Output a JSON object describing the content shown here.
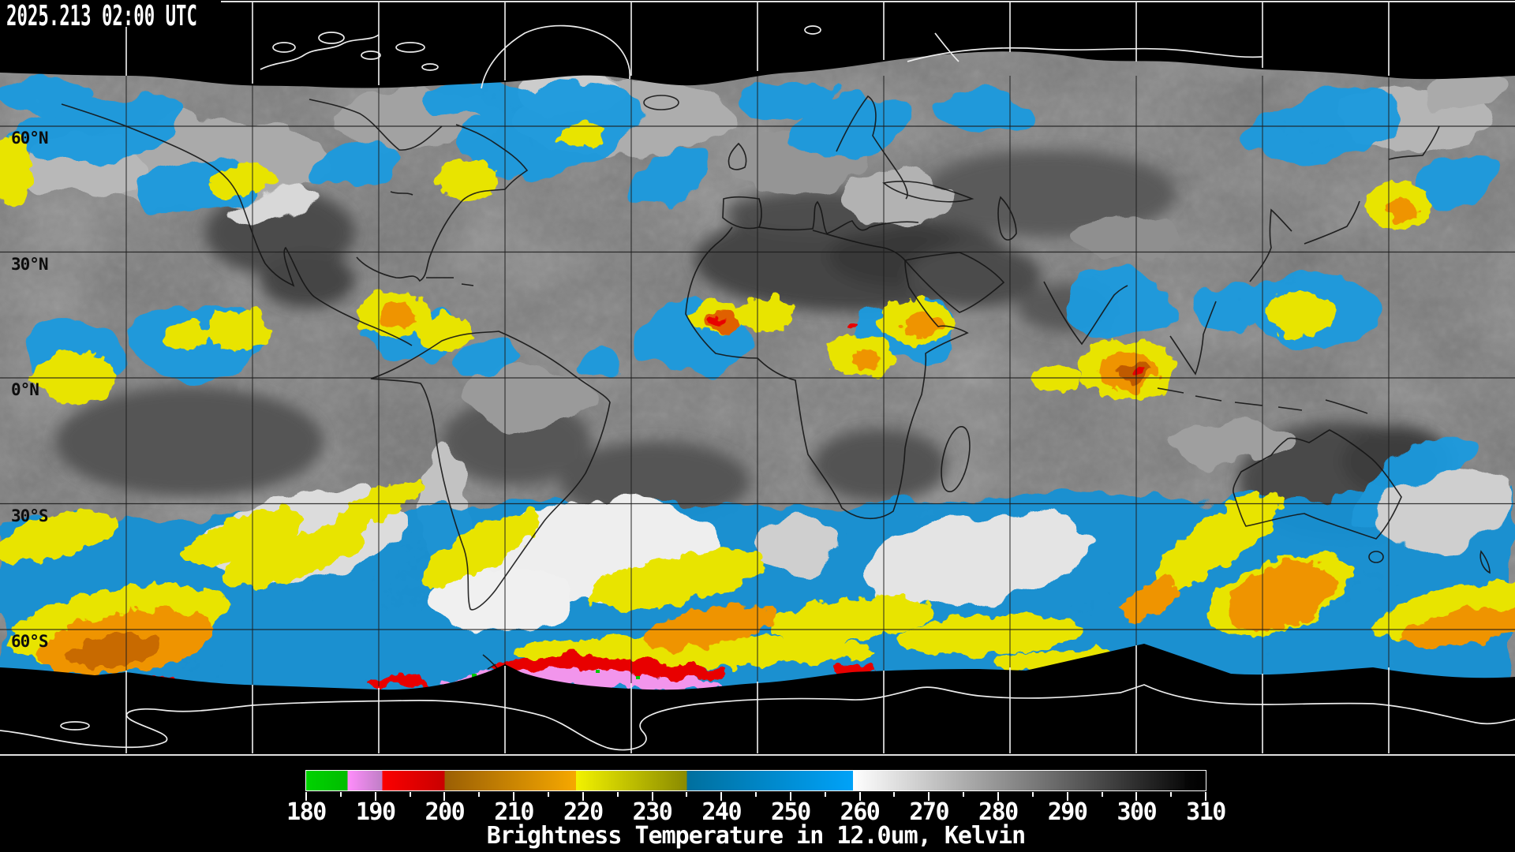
{
  "header": {
    "timestamp": "2025.213 02:00 UTC"
  },
  "map": {
    "latitude_labels": [
      "60°N",
      "30°N",
      "0°N",
      "30°S",
      "60°S"
    ]
  },
  "colorbar": {
    "title": "Brightness Temperature in 12.0um, Kelvin",
    "unit": "Kelvin",
    "range": {
      "min": 180,
      "max": 310
    },
    "minor_tick_step": 5,
    "major_tick_labels": [
      "180",
      "190",
      "200",
      "210",
      "220",
      "230",
      "240",
      "250",
      "260",
      "270",
      "280",
      "290",
      "300",
      "310"
    ],
    "segments": [
      {
        "name": "green",
        "from": 180,
        "to": 186,
        "c0": "#00d200",
        "c1": "#00bd00"
      },
      {
        "name": "violet",
        "from": 186,
        "to": 191,
        "c0": "#ff8dfb",
        "c1": "#bf7fc6"
      },
      {
        "name": "red",
        "from": 191,
        "to": 200,
        "c0": "#fb0000",
        "c1": "#c90000"
      },
      {
        "name": "orange",
        "from": 200,
        "to": 219,
        "c0": "#9a5f05",
        "c1": "#f6a800"
      },
      {
        "name": "yellow-olive",
        "from": 219,
        "to": 235,
        "c0": "#f2f200",
        "c1": "#8a8a00"
      },
      {
        "name": "blue",
        "from": 235,
        "to": 259,
        "c0": "#006f9e",
        "c1": "#00a2f8"
      },
      {
        "name": "grayscale",
        "from": 259,
        "to": 307,
        "c0": "#ffffff",
        "c1": "#0a0a0a"
      },
      {
        "name": "black-end",
        "from": 307,
        "to": 310,
        "c0": "#060606",
        "c1": "#000000"
      }
    ]
  }
}
